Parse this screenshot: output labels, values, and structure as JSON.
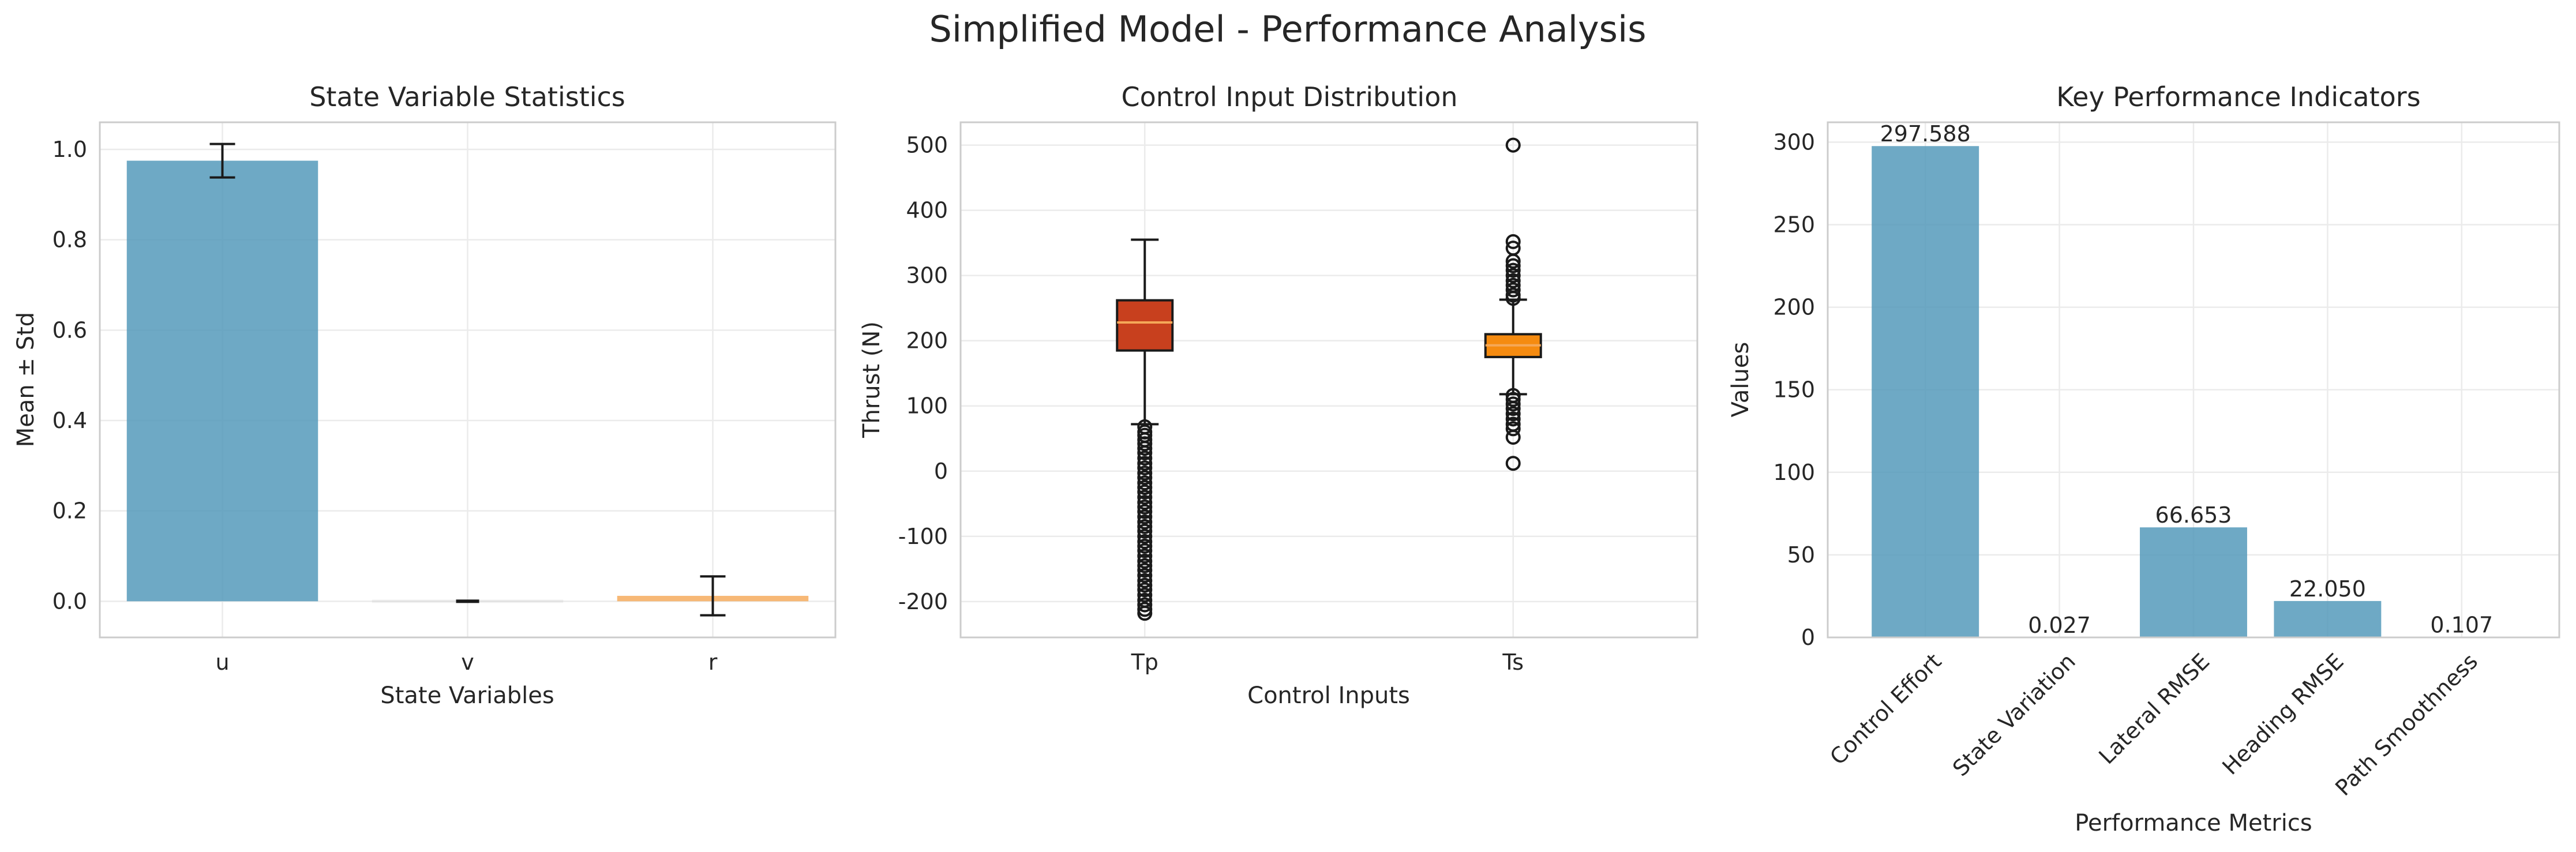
{
  "figure": {
    "title": "Simplified Model - Performance Analysis"
  },
  "colors": {
    "bar": "#4e96b8",
    "box_tp": "#c8401e",
    "box_ts": "#f58b10",
    "median": "#f5a858",
    "ink": "#1a1a1a"
  },
  "chart_data": [
    {
      "type": "bar",
      "title": "State Variable Statistics",
      "xlabel": "State Variables",
      "ylabel": "Mean ± Std",
      "categories": [
        "u",
        "v",
        "r"
      ],
      "values": [
        0.975,
        0.0,
        0.012
      ],
      "errors": [
        0.037,
        0.002,
        0.043
      ],
      "bar_colors": [
        "#4e96b8",
        "#1a1a1a",
        "#f5a858"
      ],
      "ylim": [
        -0.08,
        1.06
      ],
      "yticks": [
        0.0,
        0.2,
        0.4,
        0.6,
        0.8,
        1.0
      ],
      "ytick_labels": [
        "0.0",
        "0.2",
        "0.4",
        "0.6",
        "0.8",
        "1.0"
      ],
      "grid": true
    },
    {
      "type": "box",
      "title": "Control Input Distribution",
      "xlabel": "Control Inputs",
      "ylabel": "Thrust (N)",
      "categories": [
        "Tp",
        "Ts"
      ],
      "boxes": [
        {
          "q1": 185,
          "median": 228,
          "q3": 262,
          "whisker_low": 72,
          "whisker_high": 355,
          "outliers": [
            68,
            60,
            55,
            48,
            42,
            35,
            28,
            20,
            12,
            5,
            -3,
            -10,
            -18,
            -25,
            -32,
            -40,
            -48,
            -55,
            -62,
            -70,
            -78,
            -85,
            -92,
            -100,
            -108,
            -115,
            -122,
            -130,
            -138,
            -145,
            -152,
            -160,
            -168,
            -175,
            -182,
            -190,
            -198,
            -205,
            -212,
            -218
          ]
        },
        {
          "q1": 175,
          "median": 193,
          "q3": 210,
          "whisker_low": 118,
          "whisker_high": 263,
          "outliers": [
            500,
            352,
            342,
            322,
            315,
            308,
            300,
            292,
            285,
            278,
            270,
            265,
            116,
            110,
            103,
            96,
            88,
            80,
            72,
            65,
            52,
            12
          ]
        }
      ],
      "ylim": [
        -255,
        535
      ],
      "yticks": [
        -200,
        -100,
        0,
        100,
        200,
        300,
        400,
        500
      ],
      "ytick_labels": [
        "-200",
        "-100",
        "0",
        "100",
        "200",
        "300",
        "400",
        "500"
      ],
      "grid": true
    },
    {
      "type": "bar",
      "title": "Key Performance Indicators",
      "xlabel": "Performance Metrics",
      "ylabel": "Values",
      "categories": [
        "Control Effort",
        "State Variation",
        "Lateral RMSE",
        "Heading RMSE",
        "Path Smoothness"
      ],
      "values": [
        297.588,
        0.027,
        66.653,
        22.05,
        0.107
      ],
      "value_labels": [
        "297.588",
        "0.027",
        "66.653",
        "22.050",
        "0.107"
      ],
      "ylim": [
        0,
        312
      ],
      "yticks": [
        0,
        50,
        100,
        150,
        200,
        250,
        300
      ],
      "ytick_labels": [
        "0",
        "50",
        "100",
        "150",
        "200",
        "250",
        "300"
      ],
      "grid": true
    }
  ]
}
